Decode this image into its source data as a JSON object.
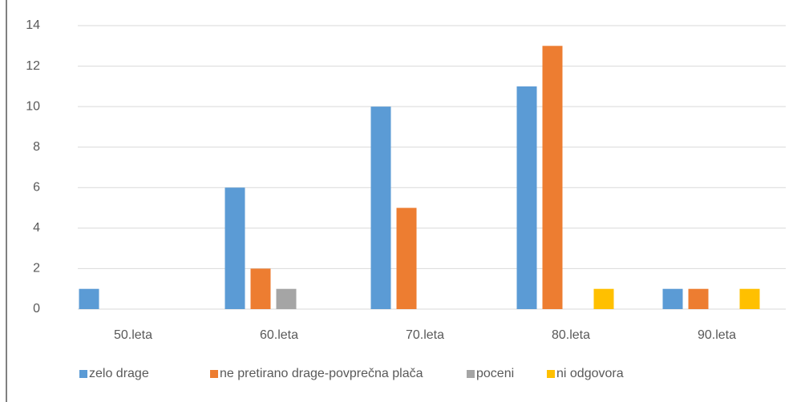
{
  "chart_data": {
    "type": "bar",
    "categories": [
      "50.leta",
      "60.leta",
      "70.leta",
      "80.leta",
      "90.leta"
    ],
    "series": [
      {
        "name": "zelo drage",
        "color": "#5b9bd5",
        "values": [
          1,
          6,
          10,
          11,
          1
        ]
      },
      {
        "name": "ne pretirano drage-povprečna plača",
        "color": "#ed7d31",
        "values": [
          0,
          2,
          5,
          13,
          1
        ]
      },
      {
        "name": "poceni",
        "color": "#a5a5a5",
        "values": [
          0,
          1,
          0,
          0,
          0
        ]
      },
      {
        "name": "ni odgovora",
        "color": "#ffc000",
        "values": [
          0,
          0,
          0,
          1,
          1
        ]
      }
    ],
    "ylim": [
      0,
      14
    ],
    "yticks": [
      0,
      2,
      4,
      6,
      8,
      10,
      12,
      14
    ],
    "grid": true,
    "legend": "bottom"
  }
}
